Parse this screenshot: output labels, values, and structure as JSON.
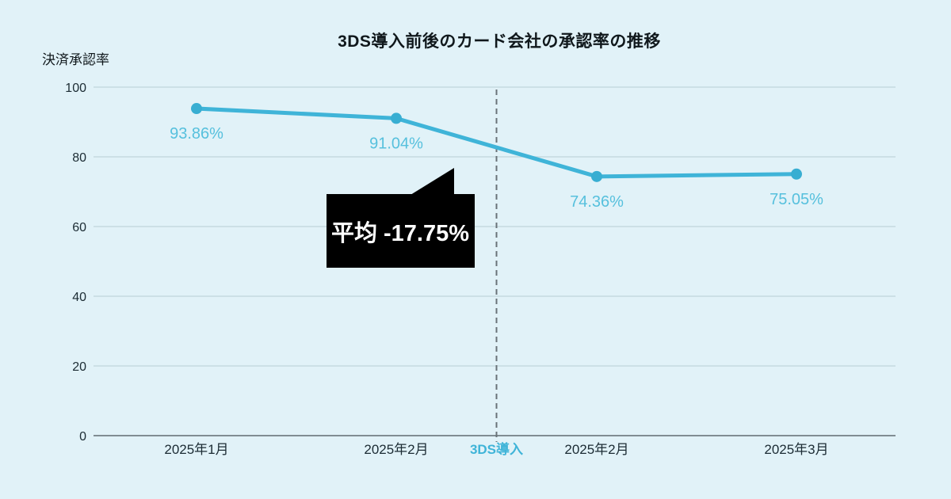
{
  "page": {
    "background": "#e1f2f8"
  },
  "chart_data": {
    "type": "line",
    "title": "3DS導入前後のカード会社の承認率の推移",
    "ylabel": "決済承認率",
    "xlabel": "",
    "ylim": [
      0,
      100
    ],
    "yticks": [
      0,
      20,
      40,
      60,
      80,
      100
    ],
    "grid": true,
    "legend": false,
    "categories": [
      "2025年1月",
      "2025年2月",
      "2025年2月",
      "2025年3月"
    ],
    "series": [
      {
        "name": "決済承認率",
        "values": [
          93.86,
          91.04,
          74.36,
          75.05
        ],
        "point_labels": [
          "93.86%",
          "91.04%",
          "74.36%",
          "75.05%"
        ]
      }
    ],
    "divider": {
      "label": "3DS導入",
      "between_indices": [
        1,
        2
      ],
      "style": "dashed"
    },
    "annotation": {
      "text": "平均 -17.75%",
      "background": "#000000",
      "text_color": "#ffffff"
    },
    "colors": {
      "line": "#3fb4d8",
      "point": "#38aed2",
      "point_label": "#56c0dd",
      "grid_line": "#c6dae0",
      "axis_line": "#808d93",
      "tick_text": "#1b2b33",
      "divider_line": "#697278",
      "divider_label": "#3fb4d8"
    }
  }
}
